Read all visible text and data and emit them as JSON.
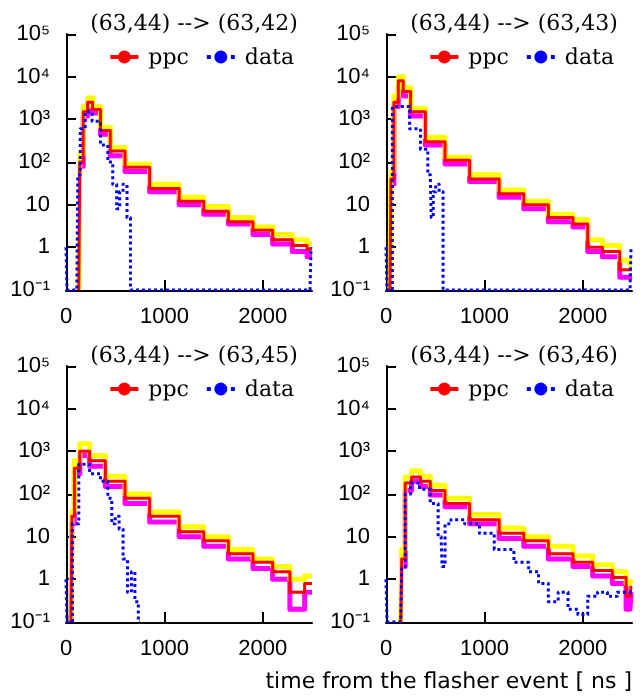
{
  "chart_data": [
    {
      "type": "step",
      "title": "(63,44) --> (63,42)",
      "xlim": [
        0,
        2500
      ],
      "xticks": [
        0,
        1000,
        2000
      ],
      "ylim": [
        0.1,
        100000
      ],
      "yticks": [
        {
          "value": 100000,
          "label": "10⁵"
        },
        {
          "value": 10000,
          "label": "10⁴"
        },
        {
          "value": 1000,
          "label": "10³"
        },
        {
          "value": 100,
          "label": "10²"
        },
        {
          "value": 10,
          "label": "10"
        },
        {
          "value": 1,
          "label": "1"
        },
        {
          "value": 0.1,
          "label": "10⁻¹"
        }
      ],
      "log": "y",
      "legend": "top right",
      "grid": false,
      "series": [
        {
          "color": "#ff00ff",
          "line_style": "solid",
          "x": [
            150,
            200,
            240,
            300,
            400,
            500,
            700,
            1000,
            1300,
            1500,
            1800,
            2000,
            2200,
            2400,
            2500
          ],
          "values": [
            80,
            1200,
            2400,
            1400,
            450,
            140,
            60,
            20,
            10,
            6,
            3.5,
            2,
            1.2,
            0.8,
            0.6
          ]
        },
        {
          "color": "#ffff00",
          "line_style": "solid",
          "x": [
            130,
            150,
            200,
            240,
            300,
            400,
            500,
            700,
            1000,
            1300,
            1500,
            1800,
            2000,
            2200,
            2400,
            2500
          ],
          "values": [
            0.1,
            150,
            2000,
            3200,
            2000,
            650,
            220,
            90,
            30,
            15,
            9,
            5,
            3,
            2,
            1.5,
            1.2
          ]
        },
        {
          "name": "ppc",
          "color": "#ff0000",
          "line_style": "solid",
          "x": [
            130,
            150,
            200,
            240,
            300,
            400,
            500,
            700,
            1000,
            1300,
            1500,
            1800,
            2000,
            2200,
            2400,
            2500
          ],
          "values": [
            0.1,
            100,
            1500,
            2500,
            1700,
            550,
            180,
            75,
            24,
            12,
            7,
            4,
            2.5,
            1.5,
            1.1,
            0.9
          ]
        },
        {
          "name": "data",
          "color": "#0000ff",
          "line_style": "dotted",
          "x": [
            0,
            20,
            110,
            130,
            160,
            230,
            300,
            400,
            450,
            500,
            530,
            560,
            600,
            640,
            670,
            2480,
            2500
          ],
          "values": [
            1,
            0.1,
            0.1,
            50,
            600,
            1500,
            900,
            250,
            100,
            30,
            8,
            20,
            30,
            5,
            0.1,
            0.1,
            1
          ]
        }
      ]
    },
    {
      "type": "step",
      "title": "(63,44) --> (63,43)",
      "xlim": [
        0,
        2500
      ],
      "xticks": [
        0,
        1000,
        2000
      ],
      "ylim": [
        0.1,
        100000
      ],
      "yticks": [
        {
          "value": 100000,
          "label": "10⁵"
        },
        {
          "value": 10000,
          "label": "10⁴"
        },
        {
          "value": 1000,
          "label": "10³"
        },
        {
          "value": 100,
          "label": "10²"
        },
        {
          "value": 10,
          "label": "10"
        },
        {
          "value": 1,
          "label": "1"
        },
        {
          "value": 0.1,
          "label": "10⁻¹"
        }
      ],
      "log": "y",
      "legend": "top right",
      "grid": false,
      "series": [
        {
          "color": "#ff00ff",
          "line_style": "solid",
          "x": [
            60,
            100,
            150,
            200,
            300,
            500,
            700,
            1000,
            1300,
            1500,
            1800,
            2000,
            2100,
            2300,
            2450,
            2500
          ],
          "values": [
            30,
            2000,
            6000,
            3500,
            1200,
            250,
            90,
            35,
            15,
            8,
            4,
            3,
            0.8,
            0.6,
            0.2,
            0.2
          ]
        },
        {
          "color": "#ffff00",
          "line_style": "solid",
          "x": [
            40,
            60,
            100,
            150,
            200,
            300,
            500,
            700,
            1000,
            1300,
            1500,
            1800,
            2000,
            2100,
            2300,
            2450,
            2500
          ],
          "values": [
            0.1,
            60,
            3500,
            10000,
            5500,
            1800,
            380,
            130,
            50,
            22,
            12,
            6,
            4.5,
            1.5,
            1.1,
            0.5,
            0.4
          ]
        },
        {
          "name": "ppc",
          "color": "#ff0000",
          "line_style": "solid",
          "x": [
            40,
            60,
            100,
            150,
            200,
            300,
            500,
            700,
            1000,
            1300,
            1500,
            1800,
            2000,
            2100,
            2300,
            2450,
            2500
          ],
          "values": [
            0.1,
            40,
            2500,
            8000,
            4500,
            1500,
            300,
            110,
            40,
            18,
            10,
            5,
            3.5,
            1,
            0.8,
            0.3,
            0.3
          ]
        },
        {
          "name": "data",
          "color": "#0000ff",
          "line_style": "dotted",
          "x": [
            0,
            20,
            50,
            80,
            180,
            300,
            400,
            450,
            470,
            490,
            520,
            560,
            600,
            2480,
            2500
          ],
          "values": [
            1,
            0.1,
            0.1,
            2000,
            2000,
            600,
            200,
            50,
            5,
            20,
            30,
            20,
            0.1,
            0.1,
            1
          ]
        }
      ]
    },
    {
      "type": "step",
      "title": "(63,44) --> (63,45)",
      "xlim": [
        0,
        2500
      ],
      "xticks": [
        0,
        1000,
        2000
      ],
      "ylim": [
        0.1,
        100000
      ],
      "yticks": [
        {
          "value": 100000,
          "label": "10⁵"
        },
        {
          "value": 10000,
          "label": "10⁴"
        },
        {
          "value": 1000,
          "label": "10³"
        },
        {
          "value": 100,
          "label": "10²"
        },
        {
          "value": 10,
          "label": "10"
        },
        {
          "value": 1,
          "label": "1"
        },
        {
          "value": 0.1,
          "label": "10⁻¹"
        }
      ],
      "log": "y",
      "legend": "top right",
      "grid": false,
      "series": [
        {
          "color": "#ff00ff",
          "line_style": "solid",
          "x": [
            50,
            70,
            100,
            180,
            300,
            500,
            700,
            1000,
            1300,
            1500,
            1800,
            2000,
            2200,
            2350,
            2500
          ],
          "values": [
            0.1,
            20,
            300,
            800,
            450,
            150,
            60,
            22,
            10,
            6,
            3,
            1.8,
            1,
            0.2,
            0.5
          ]
        },
        {
          "color": "#ffff00",
          "line_style": "solid",
          "x": [
            50,
            70,
            100,
            180,
            300,
            500,
            700,
            1000,
            1300,
            1500,
            1800,
            2000,
            2200,
            2350,
            2500
          ],
          "values": [
            0.1,
            40,
            600,
            1500,
            800,
            260,
            100,
            38,
            17,
            10,
            5,
            3,
            2,
            1,
            1.2
          ]
        },
        {
          "name": "ppc",
          "color": "#ff0000",
          "line_style": "solid",
          "x": [
            50,
            70,
            100,
            180,
            300,
            500,
            700,
            1000,
            1300,
            1500,
            1800,
            2000,
            2200,
            2350,
            2500
          ],
          "values": [
            0.1,
            30,
            400,
            1000,
            600,
            200,
            80,
            30,
            13,
            8,
            4,
            2.5,
            1.5,
            0.5,
            0.8
          ]
        },
        {
          "name": "data",
          "color": "#0000ff",
          "line_style": "dotted",
          "x": [
            0,
            20,
            50,
            80,
            180,
            300,
            400,
            450,
            480,
            520,
            560,
            600,
            650,
            680,
            720,
            750
          ],
          "values": [
            1,
            0.1,
            0.1,
            20,
            500,
            300,
            200,
            80,
            20,
            30,
            15,
            3,
            0.5,
            1.5,
            0.3,
            0.1
          ]
        }
      ]
    },
    {
      "type": "step",
      "title": "(63,44) --> (63,46)",
      "xlabel": "time from the flasher event [ ns ]",
      "xlim": [
        0,
        2500
      ],
      "xticks": [
        0,
        1000,
        2000
      ],
      "ylim": [
        0.1,
        100000
      ],
      "yticks": [
        {
          "value": 100000,
          "label": "10⁵"
        },
        {
          "value": 10000,
          "label": "10⁴"
        },
        {
          "value": 1000,
          "label": "10³"
        },
        {
          "value": 100,
          "label": "10²"
        },
        {
          "value": 10,
          "label": "10"
        },
        {
          "value": 1,
          "label": "1"
        },
        {
          "value": 0.1,
          "label": "10⁻¹"
        }
      ],
      "log": "y",
      "legend": "top right",
      "grid": false,
      "series": [
        {
          "color": "#ff00ff",
          "line_style": "solid",
          "x": [
            170,
            220,
            300,
            400,
            500,
            700,
            1000,
            1300,
            1500,
            1800,
            2000,
            2200,
            2400,
            2480,
            2500
          ],
          "values": [
            2,
            120,
            200,
            150,
            95,
            50,
            20,
            9,
            6,
            3,
            2,
            1.2,
            0.8,
            0.2,
            0.5
          ]
        },
        {
          "color": "#ffff00",
          "line_style": "solid",
          "x": [
            150,
            170,
            220,
            300,
            400,
            500,
            700,
            1000,
            1300,
            1500,
            1800,
            2000,
            2200,
            2400,
            2480,
            2500
          ],
          "values": [
            0.1,
            5,
            250,
            350,
            260,
            160,
            80,
            33,
            16,
            10,
            6,
            3.5,
            2.2,
            1.5,
            0.8,
            1
          ]
        },
        {
          "name": "ppc",
          "color": "#ff0000",
          "line_style": "solid",
          "x": [
            150,
            170,
            220,
            300,
            400,
            500,
            700,
            1000,
            1300,
            1500,
            1800,
            2000,
            2200,
            2400,
            2480,
            2500
          ],
          "values": [
            0.1,
            3,
            180,
            250,
            200,
            120,
            60,
            25,
            12,
            8,
            4,
            2.5,
            1.6,
            1.1,
            0.4,
            0.7
          ]
        },
        {
          "name": "data",
          "color": "#0000ff",
          "line_style": "dotted",
          "x": [
            0,
            20,
            150,
            170,
            220,
            280,
            400,
            500,
            560,
            580,
            620,
            700,
            900,
            1000,
            1200,
            1400,
            1500,
            1600,
            1700,
            1800,
            1900,
            2000,
            2100,
            2200,
            2300,
            2400,
            2500
          ],
          "values": [
            1,
            0.1,
            0.1,
            2,
            100,
            180,
            130,
            60,
            10,
            2,
            20,
            25,
            20,
            12,
            5,
            2.5,
            1.5,
            0.8,
            0.3,
            0.5,
            0.2,
            0.15,
            0.4,
            0.5,
            0.4,
            0.5,
            0.5
          ]
        }
      ]
    }
  ]
}
